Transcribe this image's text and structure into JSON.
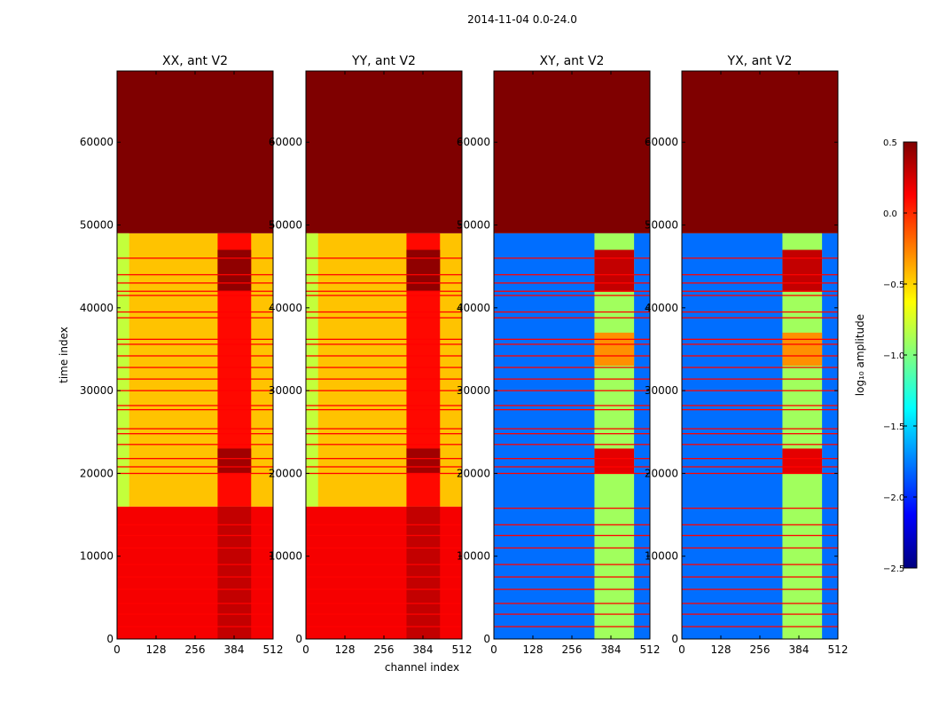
{
  "figure": {
    "suptitle": "2014-11-04 0.0-24.0",
    "xlabel": "channel index",
    "ylabel": "time index"
  },
  "colorbar": {
    "label": "log₁₀ amplitude",
    "range": [
      -2.5,
      0.5
    ],
    "ticks": [
      0.5,
      0.0,
      -0.5,
      -1.0,
      -1.5,
      -2.0,
      -2.5
    ],
    "tick_labels": [
      "0.5",
      "0.0",
      "−0.5",
      "−1.0",
      "−1.5",
      "−2.0",
      "−2.5"
    ],
    "colormap": "jet"
  },
  "colors": {
    "jet_stops": [
      "#00007f",
      "#0000ff",
      "#007fff",
      "#00ffff",
      "#7fff7f",
      "#ffff00",
      "#ff7f00",
      "#ff0000",
      "#7f0000"
    ]
  },
  "chart_data": [
    {
      "type": "heatmap",
      "title": "XX, ant V2",
      "xlabel": "",
      "ylabel": "time index",
      "xlim": [
        0,
        512
      ],
      "ylim": [
        0,
        68600
      ],
      "xticks": [
        0,
        128,
        256,
        384,
        512
      ],
      "yticks": [
        0,
        10000,
        20000,
        30000,
        40000,
        50000,
        60000
      ],
      "regions": [
        {
          "t0": 0,
          "t1": 16000,
          "c0": 0,
          "c1": 512,
          "value": 0.15,
          "label": "base"
        },
        {
          "t0": 16000,
          "t1": 49000,
          "c0": 0,
          "c1": 512,
          "value": -0.45,
          "label": "base"
        },
        {
          "t0": 49000,
          "t1": 68600,
          "c0": 0,
          "c1": 512,
          "value": 0.5,
          "label": "saturated/flagged"
        },
        {
          "t0": 16000,
          "t1": 49000,
          "c0": 0,
          "c1": 40,
          "value": -0.8,
          "label": "band edge"
        },
        {
          "t0": 16000,
          "t1": 49000,
          "c0": 330,
          "c1": 440,
          "value": 0.1,
          "label": "rfi band"
        },
        {
          "t0": 42000,
          "t1": 47000,
          "c0": 330,
          "c1": 440,
          "value": 0.45,
          "label": "rfi band peak"
        },
        {
          "t0": 20000,
          "t1": 23000,
          "c0": 330,
          "c1": 440,
          "value": 0.4,
          "label": "rfi band peak"
        },
        {
          "t0": 0,
          "t1": 16000,
          "c0": 330,
          "c1": 440,
          "value": 0.3,
          "label": "rfi band"
        }
      ],
      "flag_rows": [
        46000,
        44000,
        43000,
        42000,
        41500,
        39500,
        38800,
        36200,
        35600,
        34200,
        32800,
        31400,
        30000,
        28200,
        27700,
        25400,
        24800,
        23500,
        21800,
        20800,
        20000,
        13800,
        12500,
        11000,
        9000,
        7500,
        6000,
        4300,
        3000,
        1500
      ]
    },
    {
      "type": "heatmap",
      "title": "YY, ant V2",
      "xlabel": "channel index",
      "ylabel": "",
      "xlim": [
        0,
        512
      ],
      "ylim": [
        0,
        68600
      ],
      "xticks": [
        0,
        128,
        256,
        384,
        512
      ],
      "yticks": [
        0,
        10000,
        20000,
        30000,
        40000,
        50000,
        60000
      ],
      "regions": [
        {
          "t0": 0,
          "t1": 16000,
          "c0": 0,
          "c1": 512,
          "value": 0.15,
          "label": "base"
        },
        {
          "t0": 16000,
          "t1": 49000,
          "c0": 0,
          "c1": 512,
          "value": -0.45,
          "label": "base"
        },
        {
          "t0": 49000,
          "t1": 68600,
          "c0": 0,
          "c1": 512,
          "value": 0.5,
          "label": "saturated/flagged"
        },
        {
          "t0": 16000,
          "t1": 49000,
          "c0": 0,
          "c1": 40,
          "value": -0.8,
          "label": "band edge"
        },
        {
          "t0": 16000,
          "t1": 49000,
          "c0": 330,
          "c1": 440,
          "value": 0.1,
          "label": "rfi band"
        },
        {
          "t0": 42000,
          "t1": 47000,
          "c0": 330,
          "c1": 440,
          "value": 0.45,
          "label": "rfi band peak"
        },
        {
          "t0": 20000,
          "t1": 23000,
          "c0": 330,
          "c1": 440,
          "value": 0.4,
          "label": "rfi band peak"
        },
        {
          "t0": 0,
          "t1": 16000,
          "c0": 330,
          "c1": 440,
          "value": 0.3,
          "label": "rfi band"
        }
      ],
      "flag_rows": [
        46000,
        44000,
        43000,
        42000,
        41500,
        39500,
        38800,
        36200,
        35600,
        34200,
        32800,
        31400,
        30000,
        28200,
        27700,
        25400,
        24800,
        23500,
        21800,
        20800,
        20000,
        13800,
        12500,
        11000,
        9000,
        7500,
        6000,
        4300,
        3000,
        1500
      ]
    },
    {
      "type": "heatmap",
      "title": "XY, ant V2",
      "xlabel": "",
      "ylabel": "",
      "xlim": [
        0,
        512
      ],
      "ylim": [
        0,
        68600
      ],
      "xticks": [
        0,
        128,
        256,
        384,
        512
      ],
      "yticks": [
        0,
        10000,
        20000,
        30000,
        40000,
        50000,
        60000
      ],
      "regions": [
        {
          "t0": 0,
          "t1": 49000,
          "c0": 0,
          "c1": 512,
          "value": -1.8,
          "label": "base"
        },
        {
          "t0": 49000,
          "t1": 68600,
          "c0": 0,
          "c1": 512,
          "value": 0.5,
          "label": "saturated/flagged"
        },
        {
          "t0": 0,
          "t1": 49000,
          "c0": 330,
          "c1": 460,
          "value": -0.9,
          "label": "rfi band"
        },
        {
          "t0": 42000,
          "t1": 47000,
          "c0": 330,
          "c1": 460,
          "value": 0.3,
          "label": "rfi band peak"
        },
        {
          "t0": 20000,
          "t1": 23000,
          "c0": 330,
          "c1": 460,
          "value": 0.2,
          "label": "rfi band peak"
        },
        {
          "t0": 33000,
          "t1": 37000,
          "c0": 330,
          "c1": 460,
          "value": -0.3,
          "label": "rfi band"
        }
      ],
      "flag_rows": [
        46000,
        44000,
        43000,
        42000,
        41500,
        39500,
        38800,
        36200,
        35600,
        34200,
        32800,
        31400,
        30000,
        28200,
        27700,
        25400,
        24800,
        23500,
        21800,
        20800,
        20000,
        15800,
        13800,
        12500,
        11000,
        9000,
        7500,
        6000,
        4300,
        3000,
        1500
      ]
    },
    {
      "type": "heatmap",
      "title": "YX, ant V2",
      "xlabel": "",
      "ylabel": "",
      "xlim": [
        0,
        512
      ],
      "ylim": [
        0,
        68600
      ],
      "xticks": [
        0,
        128,
        256,
        384,
        512
      ],
      "yticks": [
        0,
        10000,
        20000,
        30000,
        40000,
        50000,
        60000
      ],
      "regions": [
        {
          "t0": 0,
          "t1": 49000,
          "c0": 0,
          "c1": 512,
          "value": -1.8,
          "label": "base"
        },
        {
          "t0": 49000,
          "t1": 68600,
          "c0": 0,
          "c1": 512,
          "value": 0.5,
          "label": "saturated/flagged"
        },
        {
          "t0": 0,
          "t1": 49000,
          "c0": 330,
          "c1": 460,
          "value": -0.9,
          "label": "rfi band"
        },
        {
          "t0": 42000,
          "t1": 47000,
          "c0": 330,
          "c1": 460,
          "value": 0.3,
          "label": "rfi band peak"
        },
        {
          "t0": 20000,
          "t1": 23000,
          "c0": 330,
          "c1": 460,
          "value": 0.2,
          "label": "rfi band peak"
        },
        {
          "t0": 33000,
          "t1": 37000,
          "c0": 330,
          "c1": 460,
          "value": -0.3,
          "label": "rfi band"
        }
      ],
      "flag_rows": [
        46000,
        44000,
        43000,
        42000,
        41500,
        39500,
        38800,
        36200,
        35600,
        34200,
        32800,
        31400,
        30000,
        28200,
        27700,
        25400,
        24800,
        23500,
        21800,
        20800,
        20000,
        15800,
        13800,
        12500,
        11000,
        9000,
        7500,
        6000,
        4300,
        3000,
        1500
      ]
    }
  ]
}
